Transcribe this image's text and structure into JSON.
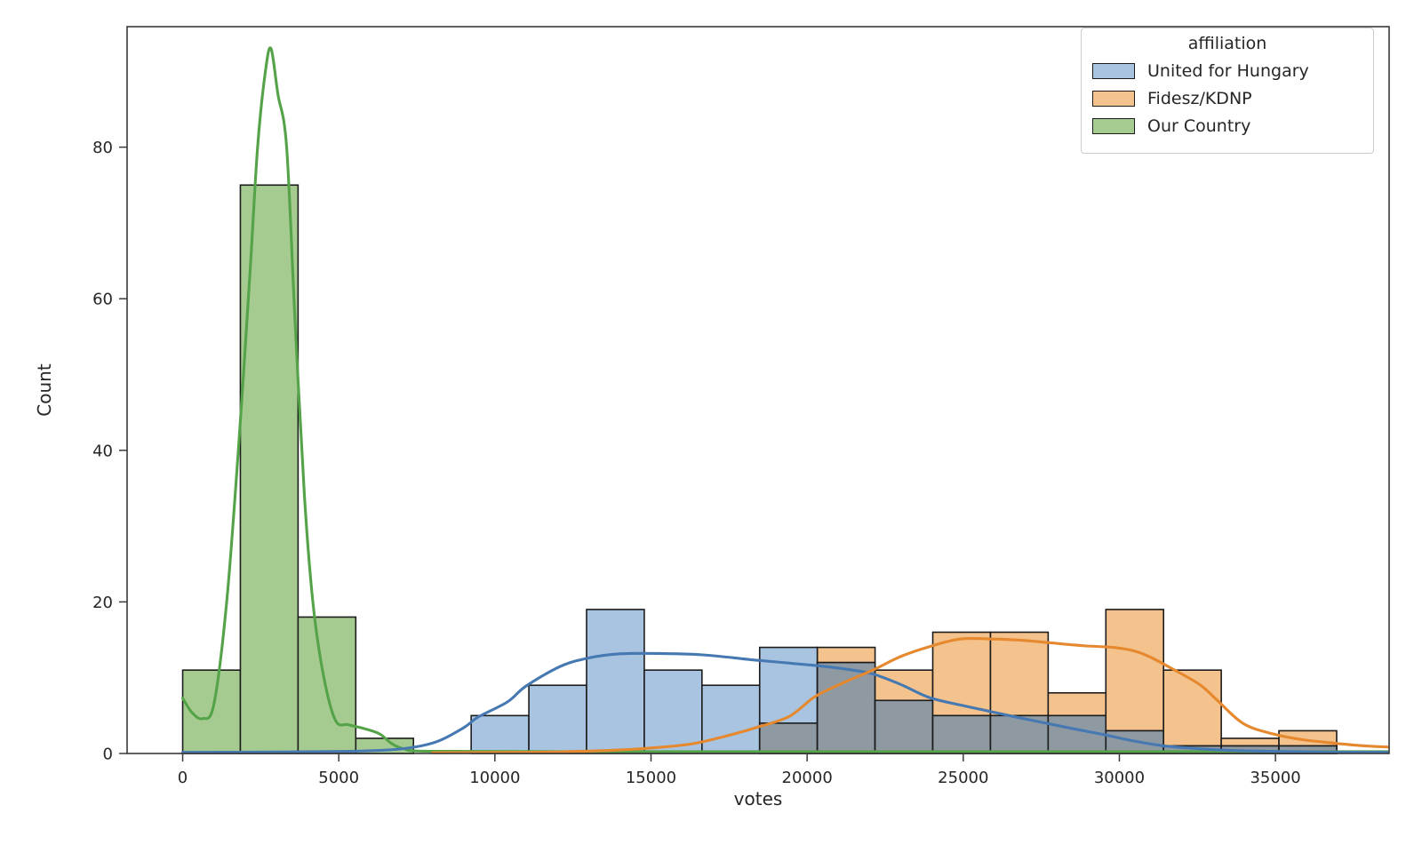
{
  "figure": {
    "xlabel": "votes",
    "ylabel": "Count",
    "legend": {
      "title": "affiliation"
    }
  },
  "chart_data": {
    "type": "histogram+kde",
    "title": "",
    "xlabel": "votes",
    "ylabel": "Count",
    "x_ticks": [
      0,
      5000,
      10000,
      15000,
      20000,
      25000,
      30000,
      35000
    ],
    "y_ticks": [
      0,
      20,
      40,
      60,
      80
    ],
    "xlim": [
      -1780,
      38640
    ],
    "ylim": [
      0,
      95.9
    ],
    "grid": false,
    "legend_position": "upper right",
    "bin_width": 1848,
    "overlap_fill": "#8e99a2",
    "series": [
      {
        "name": "United for Hungary",
        "fill": "#a8c4e0",
        "line": "#4678b2",
        "bin_start": 9240,
        "counts": [
          5,
          9,
          19,
          11,
          9,
          14,
          12,
          7,
          5,
          5,
          5,
          3,
          1,
          1,
          1
        ]
      },
      {
        "name": "Fidesz/KDNP",
        "fill": "#f4c28c",
        "line": "#e5882e",
        "bin_start": 18480,
        "counts": [
          4,
          14,
          11,
          16,
          16,
          8,
          19,
          11,
          2,
          3
        ]
      },
      {
        "name": "Our Country",
        "fill": "#a5cb90",
        "line": "#55a348",
        "bin_start": 0,
        "counts": [
          11,
          75,
          18,
          2
        ]
      }
    ],
    "kde": {
      "United for Hungary": [
        [
          0,
          0.15
        ],
        [
          3000,
          0.2
        ],
        [
          5500,
          0.3
        ],
        [
          7000,
          0.6
        ],
        [
          8100,
          1.5
        ],
        [
          9000,
          3.4
        ],
        [
          9460,
          4.8
        ],
        [
          10400,
          6.8
        ],
        [
          11000,
          8.9
        ],
        [
          12100,
          11.5
        ],
        [
          13000,
          12.6
        ],
        [
          14000,
          13.15
        ],
        [
          15200,
          13.2
        ],
        [
          16700,
          13.0
        ],
        [
          18400,
          12.3
        ],
        [
          20300,
          11.6
        ],
        [
          21300,
          11.1
        ],
        [
          22100,
          10.5
        ],
        [
          23000,
          9.1
        ],
        [
          23900,
          7.4
        ],
        [
          24900,
          6.4
        ],
        [
          25800,
          5.6
        ],
        [
          26700,
          4.8
        ],
        [
          27650,
          4.0
        ],
        [
          28600,
          3.2
        ],
        [
          29500,
          2.5
        ],
        [
          30400,
          1.7
        ],
        [
          31350,
          1.05
        ],
        [
          32300,
          0.7
        ],
        [
          33300,
          0.45
        ],
        [
          34600,
          0.3
        ],
        [
          36500,
          0.2
        ],
        [
          38600,
          0.15
        ]
      ],
      "Fidesz/KDNP": [
        [
          8000,
          0.1
        ],
        [
          11000,
          0.15
        ],
        [
          12900,
          0.3
        ],
        [
          14200,
          0.5
        ],
        [
          15100,
          0.75
        ],
        [
          16000,
          1.1
        ],
        [
          16600,
          1.5
        ],
        [
          17500,
          2.4
        ],
        [
          18350,
          3.4
        ],
        [
          19430,
          4.9
        ],
        [
          20250,
          7.5
        ],
        [
          21200,
          9.4
        ],
        [
          22100,
          11.0
        ],
        [
          23000,
          12.8
        ],
        [
          23920,
          14.1
        ],
        [
          24900,
          15.1
        ],
        [
          26000,
          15.1
        ],
        [
          27000,
          14.9
        ],
        [
          27800,
          14.6
        ],
        [
          28900,
          14.2
        ],
        [
          29800,
          14.0
        ],
        [
          30500,
          13.5
        ],
        [
          31000,
          12.7
        ],
        [
          31640,
          11.3
        ],
        [
          32570,
          9.1
        ],
        [
          33140,
          7.0
        ],
        [
          33990,
          3.9
        ],
        [
          35000,
          2.5
        ],
        [
          35900,
          1.8
        ],
        [
          36790,
          1.4
        ],
        [
          37700,
          1.05
        ],
        [
          38600,
          0.85
        ]
      ],
      "Our Country": [
        [
          0,
          7.3
        ],
        [
          300,
          5.4
        ],
        [
          640,
          4.6
        ],
        [
          1000,
          6.5
        ],
        [
          1410,
          20
        ],
        [
          1800,
          41
        ],
        [
          2150,
          63
        ],
        [
          2400,
          80
        ],
        [
          2650,
          90
        ],
        [
          2830,
          93
        ],
        [
          3050,
          87
        ],
        [
          3330,
          80
        ],
        [
          3600,
          57
        ],
        [
          3900,
          34
        ],
        [
          4170,
          20
        ],
        [
          4500,
          10.5
        ],
        [
          4890,
          4.4
        ],
        [
          5300,
          3.8
        ],
        [
          5800,
          3.3
        ],
        [
          6300,
          2.6
        ],
        [
          6700,
          1.3
        ],
        [
          7100,
          0.6
        ],
        [
          7800,
          0.3
        ],
        [
          12000,
          0.25
        ],
        [
          24000,
          0.25
        ],
        [
          38600,
          0.25
        ]
      ]
    }
  }
}
